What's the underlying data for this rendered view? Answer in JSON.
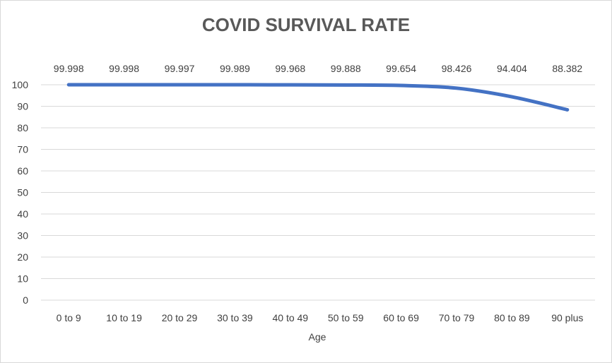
{
  "chart_data": {
    "type": "line",
    "title": "COVID SURVIVAL RATE",
    "xlabel": "Age",
    "ylabel": "",
    "categories": [
      "0 to 9",
      "10 to 19",
      "20 to 29",
      "30 to 39",
      "40 to 49",
      "50 to 59",
      "60 to 69",
      "70 to 79",
      "80 to 89",
      "90 plus"
    ],
    "values": [
      99.998,
      99.998,
      99.997,
      99.989,
      99.968,
      99.888,
      99.654,
      98.426,
      94.404,
      88.382
    ],
    "data_labels": [
      "99.998",
      "99.998",
      "99.997",
      "99.989",
      "99.968",
      "99.888",
      "99.654",
      "98.426",
      "94.404",
      "88.382"
    ],
    "ylim": [
      0,
      100
    ],
    "yticks": [
      0,
      10,
      20,
      30,
      40,
      50,
      60,
      70,
      80,
      90,
      100
    ],
    "grid": true,
    "line_color": "#4472c4",
    "legend": "none"
  }
}
